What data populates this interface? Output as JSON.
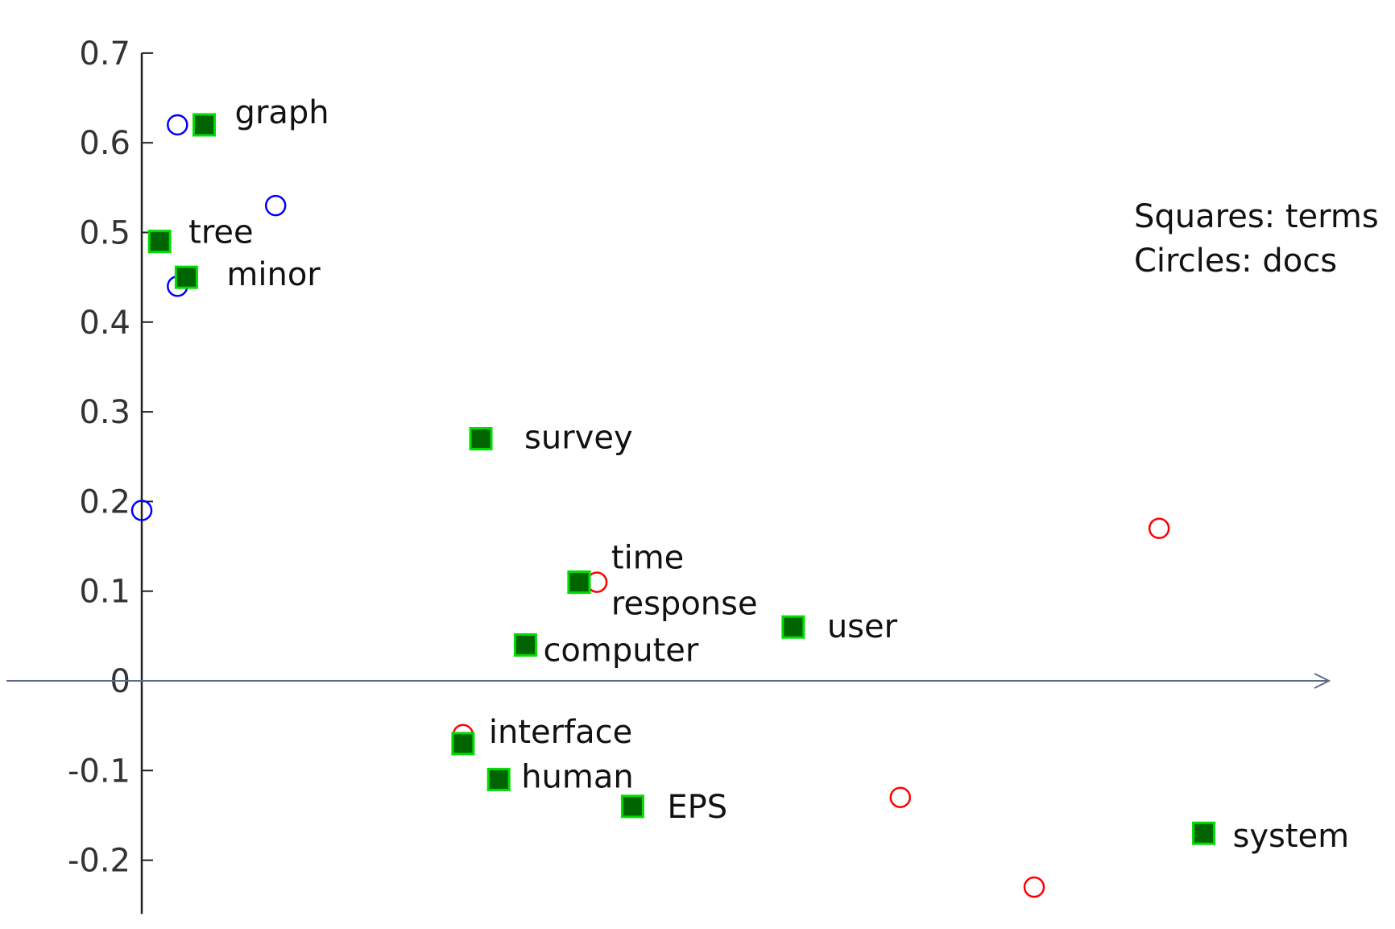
{
  "chart_data": {
    "type": "scatter",
    "title": "",
    "xlabel": "",
    "ylabel": "",
    "ylim": [
      -0.26,
      0.7
    ],
    "grid": false,
    "y_ticks": [
      "0.7",
      "0.6",
      "0.5",
      "0.4",
      "0.3",
      "0.2",
      "0.1",
      "0",
      "-0.1",
      "-0.2"
    ],
    "legend": {
      "placement": "top-right",
      "lines": [
        "Squares: terms",
        "Circles: docs"
      ]
    },
    "series": [
      {
        "marker": "square",
        "color": "#008000",
        "points": [
          {
            "label": "graph",
            "x": 0.07,
            "y": 0.62
          },
          {
            "label": "tree",
            "x": 0.02,
            "y": 0.49
          },
          {
            "label": "minor",
            "x": 0.05,
            "y": 0.45
          },
          {
            "label": "survey",
            "x": 0.38,
            "y": 0.27
          },
          {
            "label": "time",
            "x": 0.49,
            "y": 0.11
          },
          {
            "label": "response",
            "x": 0.49,
            "y": 0.11
          },
          {
            "label": "computer",
            "x": 0.43,
            "y": 0.04
          },
          {
            "label": "user",
            "x": 0.73,
            "y": 0.06
          },
          {
            "label": "interface",
            "x": 0.36,
            "y": -0.07
          },
          {
            "label": "human",
            "x": 0.4,
            "y": -0.11
          },
          {
            "label": "EPS",
            "x": 0.55,
            "y": -0.14
          },
          {
            "label": "system",
            "x": 1.19,
            "y": -0.17
          }
        ]
      },
      {
        "marker": "circle",
        "color": "#0000ff",
        "points": [
          {
            "x": 0.04,
            "y": 0.62
          },
          {
            "x": 0.15,
            "y": 0.53
          },
          {
            "x": 0.04,
            "y": 0.44
          },
          {
            "x": 0.0,
            "y": 0.19
          }
        ]
      },
      {
        "marker": "circle",
        "color": "#ff0000",
        "points": [
          {
            "x": 0.51,
            "y": 0.11
          },
          {
            "x": 0.36,
            "y": -0.06
          },
          {
            "x": 0.85,
            "y": -0.13
          },
          {
            "x": 1.0,
            "y": -0.23
          },
          {
            "x": 1.14,
            "y": 0.17
          }
        ]
      }
    ]
  }
}
